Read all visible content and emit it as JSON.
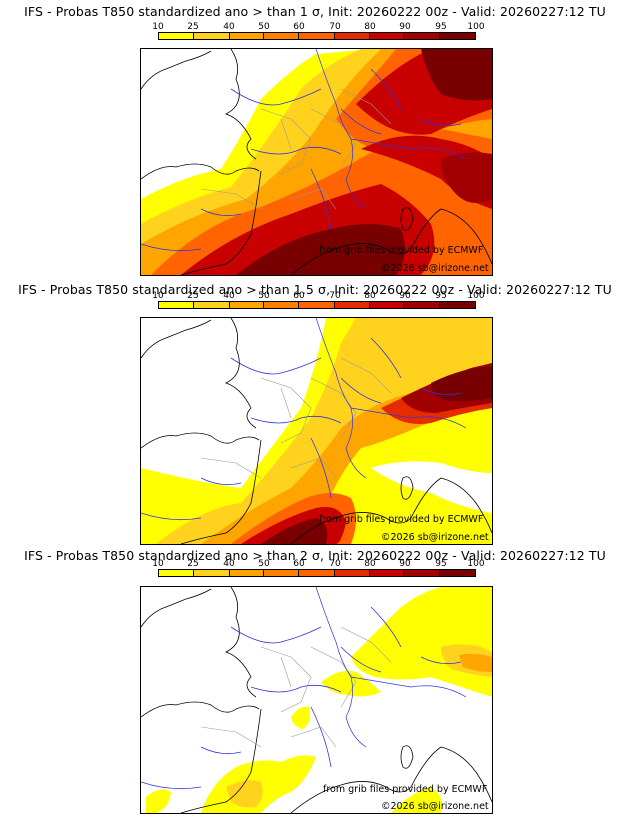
{
  "colors": {
    "scale": [
      "#ffff00",
      "#ffd21e",
      "#ffa500",
      "#ff7f00",
      "#ff6400",
      "#e52b00",
      "#c80000",
      "#a00000",
      "#780000"
    ],
    "coast": "#000000",
    "rivers": "#3232dc",
    "borders": "#9a9a9a"
  },
  "panels": [
    {
      "title": "IFS - Probas T850  standardized ano > than 1 σ, Init: 20260222 00z - Valid: 20260227:12 TU",
      "scale_labels": [
        "10",
        "25",
        "40",
        "50",
        "60",
        "70",
        "80",
        "90",
        "95",
        "100"
      ],
      "credit_source": "from grib files provided by ECMWF",
      "credit_copyright": "©2026 sb@irizone.net"
    },
    {
      "title": "IFS - Probas T850  standardized ano > than 1.5 σ, Init: 20260222 00z - Valid: 20260227:12 TU",
      "scale_labels": [
        "10",
        "25",
        "40",
        "50",
        "60",
        "70",
        "80",
        "90",
        "95",
        "100"
      ],
      "credit_source": "from grib files provided by ECMWF",
      "credit_copyright": "©2026 sb@irizone.net"
    },
    {
      "title": "IFS - Probas T850  standardized ano > than 2 σ, Init: 20260222 00z - Valid: 20260227:12 TU",
      "scale_labels": [
        "10",
        "25",
        "40",
        "50",
        "60",
        "70",
        "80",
        "90",
        "95",
        "100"
      ],
      "credit_source": "from grib files provided by ECMWF",
      "credit_copyright": "©2026 sb@irizone.net"
    }
  ]
}
